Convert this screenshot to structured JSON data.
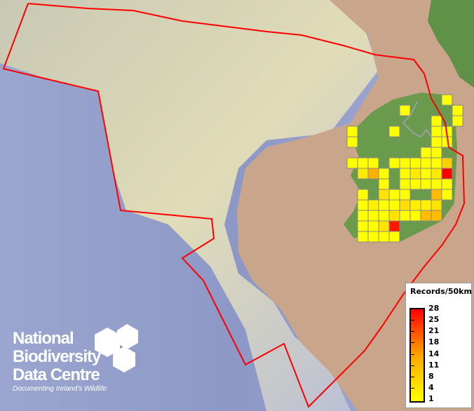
{
  "map": {
    "colors": {
      "sea_deep": "#8f9cc8",
      "shelf": "#d8d2b0",
      "land": "#c9a58c",
      "ireland": "#6a9a4c",
      "boundary": "#ff0000",
      "grid_border": "#888888"
    },
    "records_grid": [
      [
        null,
        null,
        null,
        null,
        null,
        null,
        null,
        null,
        null,
        1,
        null
      ],
      [
        null,
        null,
        null,
        null,
        null,
        1,
        null,
        null,
        null,
        null,
        1
      ],
      [
        null,
        null,
        null,
        null,
        null,
        null,
        null,
        null,
        1,
        null,
        1
      ],
      [
        1,
        null,
        null,
        null,
        1,
        null,
        null,
        null,
        1,
        1,
        null
      ],
      [
        1,
        null,
        null,
        null,
        null,
        null,
        null,
        null,
        1,
        1,
        null
      ],
      [
        null,
        null,
        null,
        null,
        null,
        null,
        null,
        1,
        1,
        null,
        null
      ],
      [
        1,
        1,
        1,
        null,
        1,
        1,
        1,
        1,
        1,
        8,
        null
      ],
      [
        null,
        4,
        13,
        1,
        null,
        1,
        4,
        1,
        4,
        28,
        null
      ],
      [
        null,
        null,
        null,
        1,
        null,
        1,
        1,
        1,
        1,
        1,
        null
      ],
      [
        null,
        1,
        null,
        5,
        1,
        1,
        null,
        null,
        11,
        1,
        null
      ],
      [
        null,
        1,
        3,
        1,
        1,
        6,
        3,
        3,
        5,
        null,
        null
      ],
      [
        null,
        1,
        1,
        1,
        5,
        1,
        1,
        11,
        11,
        null,
        null
      ],
      [
        null,
        1,
        1,
        5,
        26,
        null,
        null,
        null,
        null,
        null,
        null
      ],
      [
        null,
        1,
        1,
        1,
        1,
        null,
        null,
        null,
        null,
        null,
        null
      ]
    ]
  },
  "legend": {
    "title": "Records/50km",
    "ticks": [
      "28",
      "25",
      "21",
      "18",
      "14",
      "11",
      "8",
      "4",
      "1"
    ],
    "min": 1,
    "max": 28,
    "color_low": "#ffff00",
    "color_mid": "#ffa500",
    "color_high": "#ff0000"
  },
  "logo": {
    "line1": "National",
    "line2": "Biodiversity",
    "line3": "Data Centre",
    "tagline": "Documenting Ireland's Wildlife"
  }
}
